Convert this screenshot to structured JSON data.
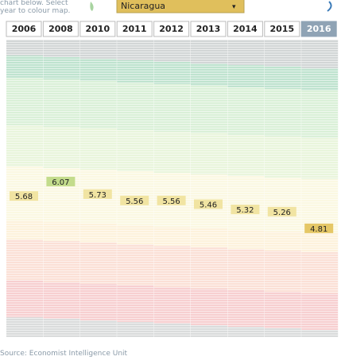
{
  "intro": "chart below. Select year to colour map.",
  "dropdown": {
    "label": "Nicaragua",
    "arrow": "▾"
  },
  "chart_data": {
    "type": "ranked-columns",
    "categories": [
      "2006",
      "2008",
      "2010",
      "2011",
      "2012",
      "2013",
      "2014",
      "2015",
      "2016"
    ],
    "values": [
      5.68,
      6.07,
      5.73,
      5.56,
      5.56,
      5.46,
      5.32,
      5.26,
      4.81
    ],
    "selected": "2016"
  },
  "source": "Source: Economist Intelligence Unit"
}
